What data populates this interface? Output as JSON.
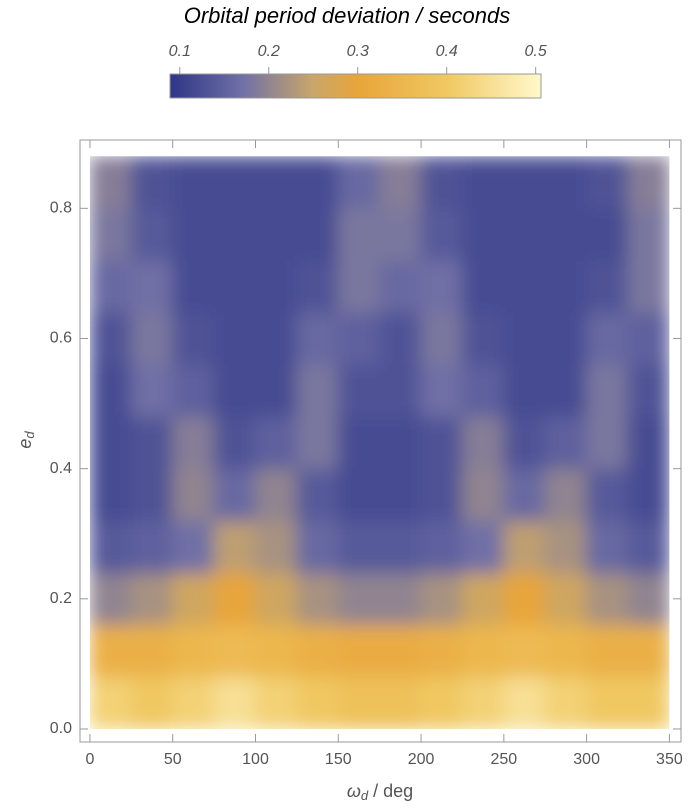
{
  "chart_data": {
    "type": "heatmap",
    "title": "Orbital period deviation / seconds",
    "x_label": {
      "symbol": "ω",
      "subscript": "d",
      "rest": "/ deg"
    },
    "y_label": {
      "symbol": "e",
      "subscript": "d"
    },
    "x": [
      12.5,
      37.5,
      62.5,
      87.5,
      112.5,
      137.5,
      162.5,
      187.5,
      212.5,
      237.5,
      262.5,
      287.5,
      312.5,
      337.5
    ],
    "y": [
      0.04,
      0.12,
      0.2,
      0.28,
      0.36,
      0.44,
      0.52,
      0.6,
      0.68,
      0.76,
      0.84
    ],
    "z": [
      [
        0.42,
        0.4,
        0.42,
        0.45,
        0.42,
        0.4,
        0.38,
        0.38,
        0.4,
        0.42,
        0.45,
        0.42,
        0.4,
        0.4
      ],
      [
        0.33,
        0.33,
        0.35,
        0.36,
        0.35,
        0.33,
        0.32,
        0.32,
        0.33,
        0.35,
        0.36,
        0.35,
        0.33,
        0.33
      ],
      [
        0.2,
        0.22,
        0.26,
        0.3,
        0.26,
        0.22,
        0.2,
        0.2,
        0.22,
        0.26,
        0.3,
        0.26,
        0.22,
        0.2
      ],
      [
        0.14,
        0.15,
        0.17,
        0.24,
        0.22,
        0.16,
        0.14,
        0.14,
        0.15,
        0.17,
        0.24,
        0.22,
        0.16,
        0.14
      ],
      [
        0.12,
        0.13,
        0.2,
        0.16,
        0.2,
        0.14,
        0.12,
        0.12,
        0.13,
        0.2,
        0.16,
        0.2,
        0.14,
        0.12
      ],
      [
        0.12,
        0.13,
        0.19,
        0.13,
        0.15,
        0.18,
        0.12,
        0.12,
        0.13,
        0.19,
        0.13,
        0.15,
        0.18,
        0.12
      ],
      [
        0.12,
        0.17,
        0.15,
        0.12,
        0.12,
        0.18,
        0.13,
        0.13,
        0.17,
        0.15,
        0.12,
        0.12,
        0.18,
        0.13
      ],
      [
        0.13,
        0.18,
        0.13,
        0.12,
        0.12,
        0.16,
        0.15,
        0.13,
        0.18,
        0.13,
        0.12,
        0.12,
        0.16,
        0.15
      ],
      [
        0.16,
        0.17,
        0.12,
        0.12,
        0.12,
        0.13,
        0.18,
        0.16,
        0.17,
        0.12,
        0.12,
        0.12,
        0.13,
        0.18
      ],
      [
        0.18,
        0.14,
        0.12,
        0.12,
        0.12,
        0.12,
        0.18,
        0.18,
        0.14,
        0.12,
        0.12,
        0.12,
        0.12,
        0.18
      ],
      [
        0.19,
        0.13,
        0.12,
        0.12,
        0.12,
        0.12,
        0.16,
        0.19,
        0.13,
        0.12,
        0.12,
        0.12,
        0.13,
        0.19
      ]
    ],
    "xlim": [
      -6,
      357
    ],
    "ylim": [
      -0.02,
      0.905
    ],
    "xticks": [
      0,
      50,
      100,
      150,
      200,
      250,
      300,
      350
    ],
    "yticks": [
      {
        "value": 0,
        "label": "0.0"
      },
      0.2,
      0.4,
      0.6,
      0.8
    ],
    "zlim": [
      0.089,
      0.506
    ],
    "zticks": [
      0.1,
      0.2,
      0.3,
      0.4,
      0.5
    ],
    "colorscale": [
      [
        0.089,
        "#2e3585"
      ],
      [
        0.17,
        "#6f70a6"
      ],
      [
        0.25,
        "#c9a66a"
      ],
      [
        0.3,
        "#e8a53a"
      ],
      [
        0.4,
        "#f0c862"
      ],
      [
        0.506,
        "#fff9cc"
      ]
    ]
  }
}
